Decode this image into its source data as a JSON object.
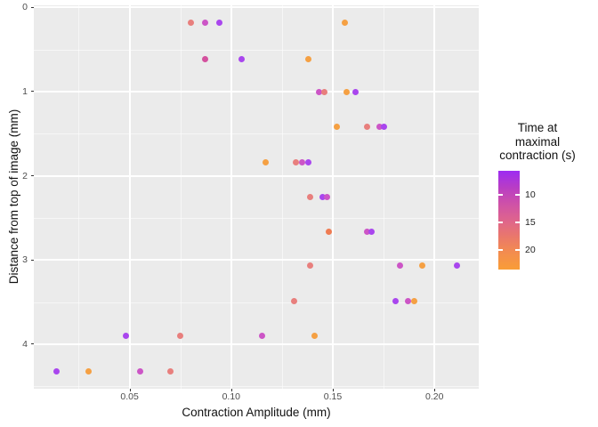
{
  "chart_data": {
    "type": "scatter",
    "xlabel": "Contraction Amplitude (mm)",
    "ylabel": "Distance from top of image (mm)",
    "xlim": [
      0.0029,
      0.2218
    ],
    "ylim": [
      -0.024,
      4.53
    ],
    "y_reversed": true,
    "x_ticks": [
      0.05,
      0.1,
      0.15,
      0.2
    ],
    "x_tick_labels": [
      "0.05",
      "0.10",
      "0.15",
      "0.20"
    ],
    "x_minor_ticks": [
      0.025,
      0.075,
      0.125,
      0.175
    ],
    "y_ticks": [
      0,
      1,
      2,
      3,
      4
    ],
    "y_tick_labels": [
      "0",
      "1",
      "2",
      "3",
      "4"
    ],
    "y_minor_ticks": [
      0.5,
      1.5,
      2.5,
      3.5,
      4.5
    ],
    "grid": "on",
    "panel_background": "#EBEBEB",
    "palette": {
      "purple": "#A946EE",
      "magenta": "#CC55C6",
      "pink": "#D4519E",
      "salmon": "#E87F7D",
      "orangered": "#EF7B52",
      "orange": "#F5A043"
    },
    "legend": {
      "position": "right",
      "title_lines": [
        "Time at",
        "maximal",
        "contraction (s)"
      ],
      "min": 5.7,
      "max": 23.5,
      "ticks": [
        10,
        15,
        20
      ],
      "tick_labels": [
        "10",
        "15",
        "20"
      ],
      "gradient_top_to_bottom": [
        "#9D2CF2",
        "#B83DC5",
        "#CE51A8",
        "#DE648D",
        "#EA786B",
        "#F38D4E",
        "#F99D37"
      ]
    },
    "points": [
      {
        "x": 0.08,
        "y": 0.18,
        "t": 17,
        "c": "salmon"
      },
      {
        "x": 0.087,
        "y": 0.18,
        "t": 12,
        "c": "magenta"
      },
      {
        "x": 0.094,
        "y": 0.18,
        "t": 7,
        "c": "purple"
      },
      {
        "x": 0.156,
        "y": 0.18,
        "t": 22,
        "c": "orange"
      },
      {
        "x": 0.087,
        "y": 0.61,
        "t": 13,
        "c": "pink"
      },
      {
        "x": 0.105,
        "y": 0.61,
        "t": 7,
        "c": "purple"
      },
      {
        "x": 0.138,
        "y": 0.61,
        "t": 22,
        "c": "orange"
      },
      {
        "x": 0.143,
        "y": 1.01,
        "t": 12,
        "c": "magenta"
      },
      {
        "x": 0.146,
        "y": 1.01,
        "t": 17,
        "c": "salmon"
      },
      {
        "x": 0.157,
        "y": 1.01,
        "t": 22,
        "c": "orange"
      },
      {
        "x": 0.161,
        "y": 1.01,
        "t": 7,
        "c": "purple"
      },
      {
        "x": 0.152,
        "y": 1.42,
        "t": 22,
        "c": "orange"
      },
      {
        "x": 0.167,
        "y": 1.42,
        "t": 17,
        "c": "salmon"
      },
      {
        "x": 0.173,
        "y": 1.42,
        "t": 12,
        "c": "magenta"
      },
      {
        "x": 0.175,
        "y": 1.42,
        "t": 7,
        "c": "purple"
      },
      {
        "x": 0.117,
        "y": 1.84,
        "t": 22,
        "c": "orange"
      },
      {
        "x": 0.132,
        "y": 1.84,
        "t": 17,
        "c": "salmon"
      },
      {
        "x": 0.135,
        "y": 1.84,
        "t": 12,
        "c": "magenta"
      },
      {
        "x": 0.138,
        "y": 1.84,
        "t": 7,
        "c": "purple"
      },
      {
        "x": 0.139,
        "y": 2.25,
        "t": 17,
        "c": "salmon"
      },
      {
        "x": 0.145,
        "y": 2.25,
        "t": 7,
        "c": "purple"
      },
      {
        "x": 0.147,
        "y": 2.25,
        "t": 12,
        "c": "magenta"
      },
      {
        "x": 0.148,
        "y": 2.66,
        "t": 20,
        "c": "orangered"
      },
      {
        "x": 0.167,
        "y": 2.66,
        "t": 12,
        "c": "magenta"
      },
      {
        "x": 0.169,
        "y": 2.66,
        "t": 7,
        "c": "purple"
      },
      {
        "x": 0.139,
        "y": 3.07,
        "t": 17,
        "c": "salmon"
      },
      {
        "x": 0.183,
        "y": 3.07,
        "t": 12,
        "c": "magenta"
      },
      {
        "x": 0.194,
        "y": 3.07,
        "t": 22,
        "c": "orange"
      },
      {
        "x": 0.211,
        "y": 3.07,
        "t": 7,
        "c": "purple"
      },
      {
        "x": 0.131,
        "y": 3.49,
        "t": 17,
        "c": "salmon"
      },
      {
        "x": 0.181,
        "y": 3.49,
        "t": 7,
        "c": "purple"
      },
      {
        "x": 0.187,
        "y": 3.49,
        "t": 12,
        "c": "magenta"
      },
      {
        "x": 0.19,
        "y": 3.49,
        "t": 22,
        "c": "orange"
      },
      {
        "x": 0.048,
        "y": 3.9,
        "t": 7,
        "c": "purple"
      },
      {
        "x": 0.075,
        "y": 3.9,
        "t": 17,
        "c": "salmon"
      },
      {
        "x": 0.115,
        "y": 3.9,
        "t": 12,
        "c": "magenta"
      },
      {
        "x": 0.141,
        "y": 3.9,
        "t": 22,
        "c": "orange"
      },
      {
        "x": 0.014,
        "y": 4.32,
        "t": 7,
        "c": "purple"
      },
      {
        "x": 0.03,
        "y": 4.32,
        "t": 22,
        "c": "orange"
      },
      {
        "x": 0.055,
        "y": 4.32,
        "t": 12,
        "c": "magenta"
      },
      {
        "x": 0.07,
        "y": 4.32,
        "t": 17,
        "c": "salmon"
      }
    ]
  }
}
